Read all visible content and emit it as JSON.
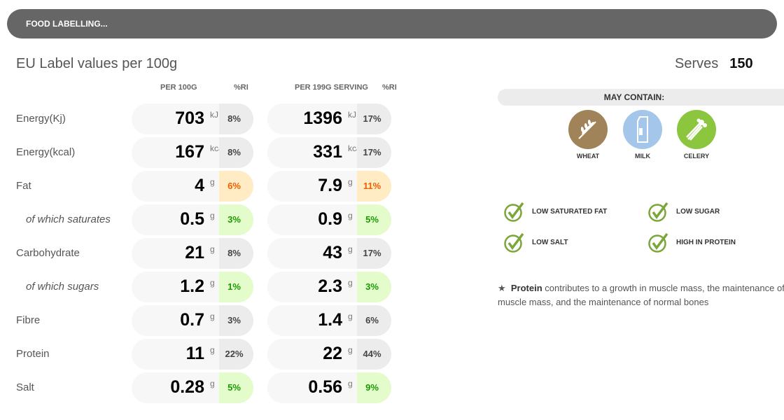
{
  "header": {
    "title": "FOOD LABELLING..."
  },
  "section_title": "EU Label values per 100g",
  "serves": {
    "label": "Serves",
    "value": "150"
  },
  "columns": {
    "per100": "PER 100G",
    "ri1": "%RI",
    "perserving": "PER 199G SERVING",
    "ri2": "%RI"
  },
  "rows": [
    {
      "label": "Energy(Kj)",
      "v1": "703",
      "u": "kJ",
      "r1": "8%",
      "v2": "1396",
      "r2": "17%",
      "c1": "g",
      "c2": "g",
      "sub": false
    },
    {
      "label": "Energy(kcal)",
      "v1": "167",
      "u": "kcal",
      "r1": "8%",
      "v2": "331",
      "r2": "17%",
      "c1": "g",
      "c2": "g",
      "sub": false
    },
    {
      "label": "Fat",
      "v1": "4",
      "u": "g",
      "r1": "6%",
      "v2": "7.9",
      "r2": "11%",
      "c1": "o",
      "c2": "o",
      "sub": false
    },
    {
      "label": "of which saturates",
      "v1": "0.5",
      "u": "g",
      "r1": "3%",
      "v2": "0.9",
      "r2": "5%",
      "c1": "gr",
      "c2": "gr",
      "sub": true
    },
    {
      "label": "Carbohydrate",
      "v1": "21",
      "u": "g",
      "r1": "8%",
      "v2": "43",
      "r2": "17%",
      "c1": "g",
      "c2": "g",
      "sub": false
    },
    {
      "label": "of which sugars",
      "v1": "1.2",
      "u": "g",
      "r1": "1%",
      "v2": "2.3",
      "r2": "3%",
      "c1": "gr",
      "c2": "gr",
      "sub": true
    },
    {
      "label": "Fibre",
      "v1": "0.7",
      "u": "g",
      "r1": "3%",
      "v2": "1.4",
      "r2": "6%",
      "c1": "g",
      "c2": "g",
      "sub": false
    },
    {
      "label": "Protein",
      "v1": "11",
      "u": "g",
      "r1": "22%",
      "v2": "22",
      "r2": "44%",
      "c1": "g",
      "c2": "g",
      "sub": false
    },
    {
      "label": "Salt",
      "v1": "0.28",
      "u": "g",
      "r1": "5%",
      "v2": "0.56",
      "r2": "9%",
      "c1": "gr",
      "c2": "gr",
      "sub": false
    }
  ],
  "may_contain": {
    "title": "MAY CONTAIN:",
    "allergens": [
      {
        "label": "WHEAT",
        "color": "#a08358"
      },
      {
        "label": "MILK",
        "color": "#a4c6ea"
      },
      {
        "label": "CELERY",
        "color": "#8cc63f"
      }
    ]
  },
  "claims": [
    "LOW SATURATED FAT",
    "LOW SUGAR",
    "LOW SALT",
    "HIGH IN PROTEIN"
  ],
  "note": {
    "star": "★",
    "bold": "Protein",
    "text": " contributes to a growth in muscle mass, the maintenance of",
    "line2": "muscle mass, and the maintenance of normal bones"
  }
}
